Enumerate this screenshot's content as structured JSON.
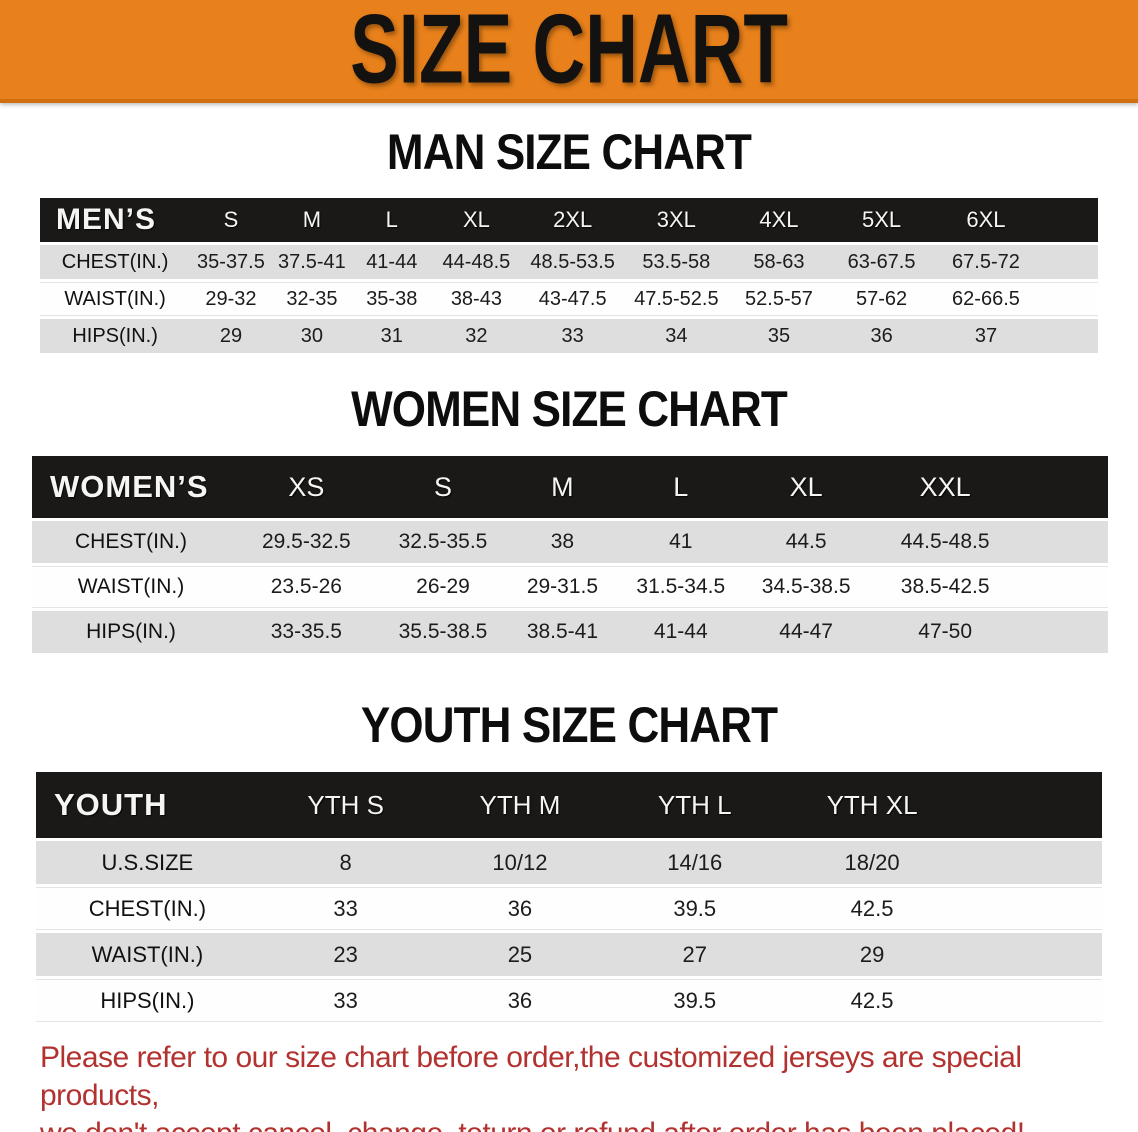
{
  "banner": {
    "title": "SIZE CHART"
  },
  "colors": {
    "banner_bg": "#E8811B",
    "header_bar": "#1A1917",
    "row_gray": "#DEDEDE",
    "row_white": "#FEFEFE",
    "note_red": "#B23230"
  },
  "sections": {
    "men": {
      "heading": "MAN SIZE CHART",
      "table": {
        "label": "MEN’S",
        "sizes": [
          "S",
          "M",
          "L",
          "XL",
          "2XL",
          "3XL",
          "4XL",
          "5XL",
          "6XL"
        ],
        "rows": [
          {
            "label": "CHEST(IN.)",
            "shade": "gray",
            "values": [
              "35-37.5",
              "37.5-41",
              "41-44",
              "44-48.5",
              "48.5-53.5",
              "53.5-58",
              "58-63",
              "63-67.5",
              "67.5-72"
            ]
          },
          {
            "label": "WAIST(IN.)",
            "shade": "white",
            "values": [
              "29-32",
              "32-35",
              "35-38",
              "38-43",
              "43-47.5",
              "47.5-52.5",
              "52.5-57",
              "57-62",
              "62-66.5"
            ]
          },
          {
            "label": "HIPS(IN.)",
            "shade": "gray",
            "values": [
              "29",
              "30",
              "31",
              "32",
              "33",
              "34",
              "35",
              "36",
              "37"
            ]
          }
        ]
      }
    },
    "women": {
      "heading": "WOMEN SIZE CHART",
      "table": {
        "label": "WOMEN’S",
        "sizes": [
          "XS",
          "S",
          "M",
          "L",
          "XL",
          "XXL"
        ],
        "rows": [
          {
            "label": "CHEST(IN.)",
            "shade": "gray",
            "values": [
              "29.5-32.5",
              "32.5-35.5",
              "38",
              "41",
              "44.5",
              "44.5-48.5"
            ]
          },
          {
            "label": "WAIST(IN.)",
            "shade": "white",
            "values": [
              "23.5-26",
              "26-29",
              "29-31.5",
              "31.5-34.5",
              "34.5-38.5",
              "38.5-42.5"
            ]
          },
          {
            "label": "HIPS(IN.)",
            "shade": "gray",
            "values": [
              "33-35.5",
              "35.5-38.5",
              "38.5-41",
              "41-44",
              "44-47",
              "47-50"
            ]
          }
        ]
      }
    },
    "youth": {
      "heading": "YOUTH SIZE CHART",
      "table": {
        "label": "YOUTH",
        "sizes": [
          "YTH S",
          "YTH M",
          "YTH L",
          "YTH XL"
        ],
        "rows": [
          {
            "label": "U.S.SIZE",
            "shade": "gray",
            "values": [
              "8",
              "10/12",
              "14/16",
              "18/20"
            ]
          },
          {
            "label": "CHEST(IN.)",
            "shade": "white",
            "values": [
              "33",
              "36",
              "39.5",
              "42.5"
            ]
          },
          {
            "label": "WAIST(IN.)",
            "shade": "gray",
            "values": [
              "23",
              "25",
              "27",
              "29"
            ]
          },
          {
            "label": "HIPS(IN.)",
            "shade": "white",
            "values": [
              "33",
              "36",
              "39.5",
              "42.5"
            ]
          }
        ]
      }
    }
  },
  "note": {
    "line1": "Please refer to our size chart before order,the customized jerseys are special products,",
    "line2": "we don't accept cancel, change, teturn or refund after order has been placed!"
  }
}
